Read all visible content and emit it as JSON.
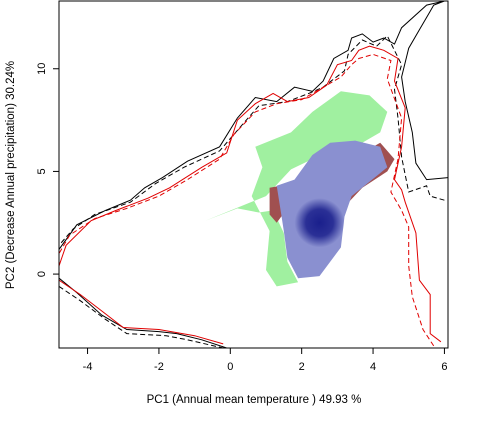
{
  "chart_data": {
    "type": "density-contour",
    "xlabel": "PC1 (Annual mean temperature ) 49.93 %",
    "ylabel": "PC2 (Decrease Annual precipitation) 30.24%",
    "xlim": [
      -4.8,
      6.1
    ],
    "ylim": [
      -3.6,
      13.3
    ],
    "x_ticks": [
      -4,
      -2,
      0,
      2,
      4,
      6
    ],
    "y_ticks": [
      0,
      5,
      10
    ],
    "legend": "none",
    "grid": false,
    "colors": {
      "overlap": "#1a1f8c",
      "overlap_light": "#8a90d0",
      "native_only": "#a0f0a0",
      "invaded_only": "#a05050",
      "native_envelope": "#000000",
      "invaded_envelope": "#e00000"
    },
    "series": [
      {
        "kind": "region",
        "color_key": "native_only",
        "points": [
          [
            -0.7,
            2.6
          ],
          [
            0.2,
            3.2
          ],
          [
            0.8,
            3.0
          ],
          [
            1.2,
            3.1
          ],
          [
            1.5,
            2.0
          ],
          [
            1.6,
            0.6
          ],
          [
            1.9,
            -0.4
          ],
          [
            1.3,
            -0.6
          ],
          [
            1.0,
            0.2
          ],
          [
            1.1,
            2.1
          ],
          [
            0.6,
            3.8
          ],
          [
            0.9,
            5.2
          ],
          [
            0.7,
            6.2
          ],
          [
            1.7,
            6.9
          ],
          [
            2.3,
            7.9
          ],
          [
            3.1,
            8.9
          ],
          [
            3.9,
            8.7
          ],
          [
            4.4,
            7.9
          ],
          [
            4.2,
            6.9
          ],
          [
            3.6,
            6.3
          ],
          [
            2.9,
            6.1
          ],
          [
            1.7,
            5.1
          ],
          [
            1.0,
            3.8
          ]
        ]
      },
      {
        "kind": "region",
        "color_key": "invaded_only",
        "points": [
          [
            1.1,
            4.2
          ],
          [
            1.4,
            4.3
          ],
          [
            1.6,
            3.2
          ],
          [
            1.3,
            2.5
          ],
          [
            1.1,
            2.9
          ]
        ]
      },
      {
        "kind": "region",
        "color_key": "invaded_only",
        "points": [
          [
            3.1,
            3.1
          ],
          [
            3.7,
            4.2
          ],
          [
            4.4,
            5.0
          ],
          [
            4.6,
            5.6
          ],
          [
            4.2,
            6.4
          ],
          [
            3.7,
            5.9
          ],
          [
            3.4,
            5.0
          ],
          [
            3.2,
            4.3
          ]
        ]
      },
      {
        "kind": "region",
        "color_key": "overlap_light",
        "points": [
          [
            1.3,
            4.3
          ],
          [
            1.8,
            4.6
          ],
          [
            2.3,
            5.8
          ],
          [
            2.8,
            6.4
          ],
          [
            3.5,
            6.5
          ],
          [
            4.2,
            6.2
          ],
          [
            4.4,
            5.2
          ],
          [
            3.9,
            4.5
          ],
          [
            3.4,
            3.8
          ],
          [
            3.2,
            2.8
          ],
          [
            3.1,
            1.3
          ],
          [
            2.5,
            -0.1
          ],
          [
            1.9,
            -0.2
          ],
          [
            1.6,
            0.8
          ],
          [
            1.5,
            2.1
          ],
          [
            1.4,
            3.2
          ]
        ]
      },
      {
        "kind": "hotspot",
        "color_key": "overlap",
        "center": [
          2.5,
          2.5
        ],
        "radius": [
          0.7,
          1.2
        ]
      },
      {
        "kind": "envelope",
        "color_key": "native_envelope",
        "dash": "solid",
        "points": [
          [
            6.1,
            4.7
          ],
          [
            5.5,
            4.6
          ],
          [
            5.2,
            5.4
          ],
          [
            5.1,
            6.9
          ],
          [
            4.9,
            8.4
          ],
          [
            4.8,
            9.6
          ],
          [
            5.0,
            11.0
          ],
          [
            5.3,
            11.9
          ],
          [
            5.6,
            12.8
          ],
          [
            5.7,
            13.1
          ],
          [
            6.0,
            13.3
          ],
          [
            5.5,
            13.1
          ],
          [
            4.8,
            12.0
          ],
          [
            4.6,
            11.2
          ],
          [
            4.3,
            11.5
          ],
          [
            4.0,
            11.3
          ],
          [
            3.7,
            11.7
          ],
          [
            3.4,
            11.5
          ],
          [
            3.3,
            10.9
          ],
          [
            2.9,
            10.5
          ],
          [
            2.6,
            9.4
          ],
          [
            2.3,
            8.9
          ],
          [
            1.8,
            9.1
          ],
          [
            1.3,
            8.4
          ],
          [
            0.7,
            8.6
          ],
          [
            0.2,
            7.6
          ],
          [
            -0.3,
            6.2
          ],
          [
            -1.2,
            5.5
          ],
          [
            -1.9,
            4.7
          ],
          [
            -2.4,
            4.2
          ],
          [
            -2.8,
            3.6
          ],
          [
            -3.5,
            3.1
          ],
          [
            -4.3,
            2.4
          ],
          [
            -4.8,
            1.2
          ],
          [
            -4.8,
            -0.2
          ],
          [
            -4.3,
            -0.9
          ],
          [
            -3.6,
            -2.0
          ],
          [
            -2.9,
            -2.7
          ],
          [
            -2.0,
            -2.8
          ],
          [
            -1.5,
            -2.9
          ],
          [
            -0.8,
            -3.2
          ],
          [
            -0.1,
            -3.6
          ]
        ]
      },
      {
        "kind": "envelope",
        "color_key": "native_envelope",
        "dash": "dashed",
        "points": [
          [
            6.0,
            3.6
          ],
          [
            5.6,
            3.8
          ],
          [
            5.5,
            4.3
          ],
          [
            5.0,
            4.0
          ],
          [
            4.8,
            5.7
          ],
          [
            4.7,
            7.6
          ],
          [
            4.6,
            9.0
          ],
          [
            4.8,
            10.2
          ],
          [
            4.4,
            11.6
          ],
          [
            4.1,
            11.1
          ],
          [
            3.7,
            11.4
          ],
          [
            3.3,
            10.7
          ],
          [
            3.2,
            9.9
          ],
          [
            2.6,
            9.1
          ],
          [
            2.2,
            8.8
          ],
          [
            1.6,
            8.4
          ],
          [
            0.8,
            8.2
          ],
          [
            0.3,
            7.2
          ],
          [
            -0.3,
            6.0
          ],
          [
            -1.3,
            5.2
          ],
          [
            -2.1,
            4.4
          ],
          [
            -2.8,
            3.5
          ],
          [
            -3.8,
            2.9
          ],
          [
            -4.4,
            2.2
          ],
          [
            -4.8,
            1.4
          ]
        ]
      },
      {
        "kind": "envelope",
        "color_key": "native_envelope",
        "dash": "dashed",
        "points": [
          [
            -4.8,
            -0.6
          ],
          [
            -4.2,
            -1.3
          ],
          [
            -3.5,
            -2.2
          ],
          [
            -2.9,
            -2.9
          ],
          [
            -1.8,
            -3.0
          ],
          [
            -1.2,
            -3.2
          ],
          [
            -0.2,
            -3.6
          ]
        ]
      },
      {
        "kind": "envelope",
        "color_key": "invaded_envelope",
        "dash": "solid",
        "points": [
          [
            5.9,
            -3.3
          ],
          [
            5.6,
            -2.9
          ],
          [
            5.6,
            -1.0
          ],
          [
            5.3,
            -0.3
          ],
          [
            5.2,
            2.0
          ],
          [
            4.9,
            3.5
          ],
          [
            4.8,
            4.1
          ],
          [
            4.6,
            4.6
          ],
          [
            4.8,
            6.2
          ],
          [
            4.9,
            8.1
          ],
          [
            4.6,
            9.4
          ],
          [
            4.7,
            10.5
          ],
          [
            4.3,
            10.9
          ],
          [
            3.9,
            11.1
          ],
          [
            3.6,
            10.9
          ],
          [
            3.4,
            10.4
          ],
          [
            3.0,
            10.2
          ],
          [
            2.7,
            9.2
          ],
          [
            2.2,
            8.6
          ],
          [
            1.6,
            8.4
          ],
          [
            1.2,
            8.8
          ],
          [
            0.7,
            8.3
          ],
          [
            0.2,
            7.5
          ],
          [
            -0.1,
            5.9
          ],
          [
            -0.8,
            5.2
          ],
          [
            -1.7,
            4.2
          ],
          [
            -2.3,
            3.7
          ],
          [
            -3.2,
            3.1
          ],
          [
            -3.9,
            2.6
          ],
          [
            -4.6,
            1.4
          ],
          [
            -4.8,
            0.4
          ]
        ]
      },
      {
        "kind": "envelope",
        "color_key": "invaded_envelope",
        "dash": "dashed",
        "points": [
          [
            5.7,
            -3.5
          ],
          [
            5.4,
            -2.7
          ],
          [
            5.1,
            -1.1
          ],
          [
            5.0,
            0.4
          ],
          [
            5.0,
            2.3
          ],
          [
            4.8,
            3.1
          ],
          [
            4.5,
            4.0
          ],
          [
            4.7,
            5.6
          ],
          [
            4.8,
            7.6
          ],
          [
            4.4,
            9.5
          ],
          [
            4.5,
            10.4
          ],
          [
            4.0,
            10.7
          ],
          [
            3.6,
            10.5
          ],
          [
            3.4,
            10.2
          ],
          [
            3.1,
            9.6
          ],
          [
            2.5,
            9.0
          ],
          [
            2.0,
            8.5
          ],
          [
            1.3,
            8.3
          ],
          [
            0.7,
            7.9
          ],
          [
            0.1,
            6.8
          ],
          [
            -0.3,
            5.6
          ],
          [
            -1.2,
            4.6
          ],
          [
            -2.0,
            3.8
          ],
          [
            -2.9,
            3.2
          ],
          [
            -3.8,
            2.7
          ],
          [
            -4.5,
            1.9
          ],
          [
            -4.8,
            1.0
          ]
        ]
      },
      {
        "kind": "envelope",
        "color_key": "invaded_envelope",
        "dash": "solid",
        "points": [
          [
            -4.8,
            -0.3
          ],
          [
            -4.2,
            -1.0
          ],
          [
            -3.6,
            -1.8
          ],
          [
            -3.0,
            -2.6
          ],
          [
            -2.0,
            -2.7
          ],
          [
            -1.0,
            -3.0
          ],
          [
            -0.2,
            -3.4
          ]
        ]
      }
    ]
  }
}
